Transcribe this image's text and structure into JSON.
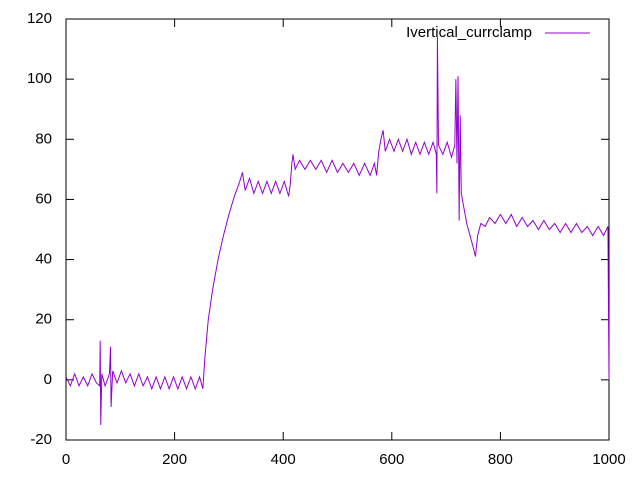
{
  "chart_data": {
    "type": "line",
    "series": [
      {
        "name": "Ivertical_currclamp",
        "color": "#9400d3",
        "x": [
          0,
          8,
          16,
          24,
          32,
          40,
          48,
          56,
          62,
          63,
          64,
          66,
          72,
          80,
          82,
          83,
          86,
          94,
          102,
          110,
          118,
          126,
          134,
          142,
          150,
          158,
          166,
          174,
          182,
          190,
          198,
          206,
          214,
          222,
          230,
          238,
          246,
          252,
          256,
          262,
          270,
          280,
          290,
          300,
          310,
          320,
          325,
          330,
          338,
          346,
          354,
          362,
          370,
          378,
          386,
          394,
          402,
          410,
          413,
          416,
          418,
          422,
          430,
          440,
          450,
          460,
          470,
          480,
          490,
          500,
          510,
          520,
          530,
          540,
          550,
          560,
          568,
          572,
          576,
          580,
          584,
          588,
          596,
          604,
          612,
          620,
          628,
          636,
          644,
          652,
          660,
          668,
          676,
          682,
          683,
          684,
          686,
          694,
          702,
          710,
          716,
          718,
          720,
          722,
          724,
          726,
          728,
          732,
          738,
          744,
          750,
          754,
          758,
          764,
          772,
          780,
          790,
          800,
          810,
          820,
          830,
          840,
          850,
          860,
          870,
          880,
          890,
          900,
          910,
          920,
          930,
          940,
          950,
          960,
          970,
          980,
          990,
          998,
          1000
        ],
        "values": [
          1,
          -2,
          2,
          -2,
          1,
          -2,
          2,
          -1,
          -2,
          13,
          -15,
          2,
          -2,
          2,
          11,
          -9,
          3,
          -1,
          3,
          -1,
          2,
          -2,
          2,
          -2,
          1,
          -3,
          1,
          -3,
          1,
          -3,
          1,
          -3,
          1,
          -3,
          1,
          -3,
          1,
          -3,
          8,
          20,
          30,
          40,
          48,
          55,
          61,
          66,
          69,
          63,
          67,
          62,
          66,
          62,
          66,
          62,
          66,
          62,
          66,
          61,
          65,
          72,
          75,
          70,
          73,
          70,
          73,
          70,
          73,
          69,
          73,
          69,
          72,
          69,
          72,
          68,
          72,
          68,
          72,
          68,
          76,
          80,
          83,
          76,
          80,
          76,
          80,
          76,
          80,
          75,
          79,
          75,
          79,
          75,
          79,
          75,
          62,
          114,
          78,
          75,
          79,
          74,
          78,
          100,
          72,
          101,
          53,
          88,
          62,
          58,
          52,
          48,
          44,
          41,
          48,
          52,
          51,
          54,
          52,
          55,
          52,
          55,
          51,
          54,
          51,
          53,
          50,
          53,
          50,
          52,
          49,
          52,
          49,
          52,
          49,
          51,
          48,
          51,
          48,
          51,
          0
        ]
      }
    ],
    "xlim": [
      0,
      1000
    ],
    "xticks": [
      0,
      200,
      400,
      600,
      800,
      1000
    ],
    "ylim": [
      -20,
      120
    ],
    "yticks": [
      -20,
      0,
      20,
      40,
      60,
      80,
      100,
      120
    ],
    "legend": "top-right"
  }
}
